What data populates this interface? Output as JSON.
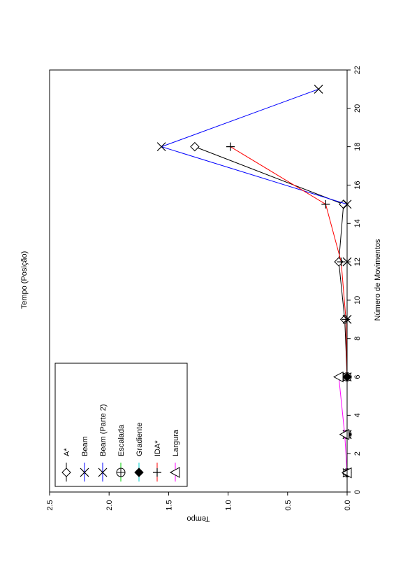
{
  "chart_data": {
    "type": "line",
    "title": "Tempo (Posição)",
    "xlabel": "Número de Movimentos",
    "ylabel": "Tempo",
    "xlim": [
      0,
      22
    ],
    "ylim": [
      0.0,
      2.5
    ],
    "x_ticks": [
      "0",
      "2",
      "4",
      "6",
      "8",
      "10",
      "12",
      "14",
      "16",
      "18",
      "20",
      "22"
    ],
    "y_ticks": [
      "0.0",
      "0.5",
      "1.0",
      "1.5",
      "2.0",
      "2.5"
    ],
    "grid": false,
    "legend_position": "bottom-left",
    "series": [
      {
        "name": "A*",
        "color": "#000000",
        "marker": "diamond",
        "x": [
          1,
          3,
          6,
          9,
          12,
          15,
          18
        ],
        "y": [
          0.0,
          0.0,
          0.0,
          0.02,
          0.07,
          0.03,
          1.28
        ]
      },
      {
        "name": "Beam",
        "color": "#0000ff",
        "marker": "x",
        "x": [
          1,
          3,
          6,
          9,
          12,
          15,
          18,
          21
        ],
        "y": [
          0.0,
          0.0,
          0.0,
          0.0,
          0.0,
          0.0,
          1.56,
          0.24
        ]
      },
      {
        "name": "Beam (Parte 2)",
        "color": "#0000ff",
        "marker": "x",
        "x": [
          1,
          3,
          6
        ],
        "y": [
          0.0,
          0.0,
          0.0
        ]
      },
      {
        "name": "Escalada",
        "color": "#00cc00",
        "marker": "circle-plus",
        "x": [
          1,
          3,
          6
        ],
        "y": [
          0.0,
          0.0,
          0.0
        ]
      },
      {
        "name": "Gradiente",
        "color": "#00cccc",
        "marker": "filled-diamond",
        "x": [
          1,
          3,
          6
        ],
        "y": [
          0.0,
          0.0,
          0.0
        ]
      },
      {
        "name": "IDA*",
        "color": "#ff0000",
        "marker": "plus",
        "x": [
          1,
          3,
          6,
          9,
          12,
          15,
          18
        ],
        "y": [
          0.0,
          0.0,
          0.0,
          0.01,
          0.05,
          0.18,
          0.98
        ]
      },
      {
        "name": "Largura",
        "color": "#ff00ff",
        "marker": "triangle",
        "x": [
          1,
          3,
          6
        ],
        "y": [
          0.0,
          0.02,
          0.07
        ]
      }
    ]
  }
}
